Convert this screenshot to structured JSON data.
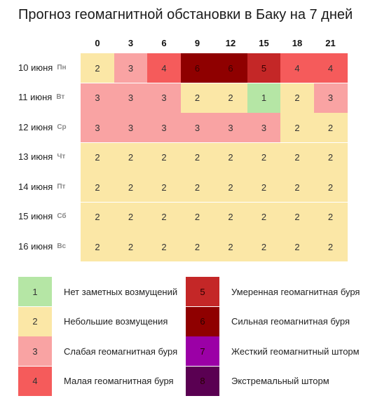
{
  "title": "Прогноз геомагнитной обстановки в Баку на 7 дней",
  "hours": [
    "0",
    "3",
    "6",
    "9",
    "12",
    "15",
    "18",
    "21"
  ],
  "days": [
    {
      "date": "10 июня",
      "dow": "Пн",
      "values": [
        2,
        3,
        4,
        6,
        6,
        5,
        4,
        4
      ]
    },
    {
      "date": "11 июня",
      "dow": "Вт",
      "values": [
        3,
        3,
        3,
        2,
        2,
        1,
        2,
        3
      ]
    },
    {
      "date": "12 июня",
      "dow": "Ср",
      "values": [
        3,
        3,
        3,
        3,
        3,
        3,
        2,
        2
      ]
    },
    {
      "date": "13 июня",
      "dow": "Чт",
      "values": [
        2,
        2,
        2,
        2,
        2,
        2,
        2,
        2
      ]
    },
    {
      "date": "14 июня",
      "dow": "Пт",
      "values": [
        2,
        2,
        2,
        2,
        2,
        2,
        2,
        2
      ]
    },
    {
      "date": "15 июня",
      "dow": "Сб",
      "values": [
        2,
        2,
        2,
        2,
        2,
        2,
        2,
        2
      ]
    },
    {
      "date": "16 июня",
      "dow": "Вс",
      "values": [
        2,
        2,
        2,
        2,
        2,
        2,
        2,
        2
      ]
    }
  ],
  "level_colors": {
    "1": "#b5e6a5",
    "2": "#fbe7a6",
    "3": "#f9a3a3",
    "4": "#f55b5b",
    "5": "#c42727",
    "6": "#8f0000",
    "7": "#9b00a6",
    "8": "#5a0052"
  },
  "legend": [
    {
      "level": "1",
      "text": "Нет заметных возмущений"
    },
    {
      "level": "2",
      "text": "Небольшие возмущения"
    },
    {
      "level": "3",
      "text": "Слабая геомагнитная буря"
    },
    {
      "level": "4",
      "text": "Малая геомагнитная буря"
    },
    {
      "level": "5",
      "text": "Умеренная геомагнитная буря"
    },
    {
      "level": "6",
      "text": "Сильная геомагнитная буря"
    },
    {
      "level": "7",
      "text": "Жесткий геомагнитный шторм"
    },
    {
      "level": "8",
      "text": "Экстремальный шторм"
    }
  ]
}
